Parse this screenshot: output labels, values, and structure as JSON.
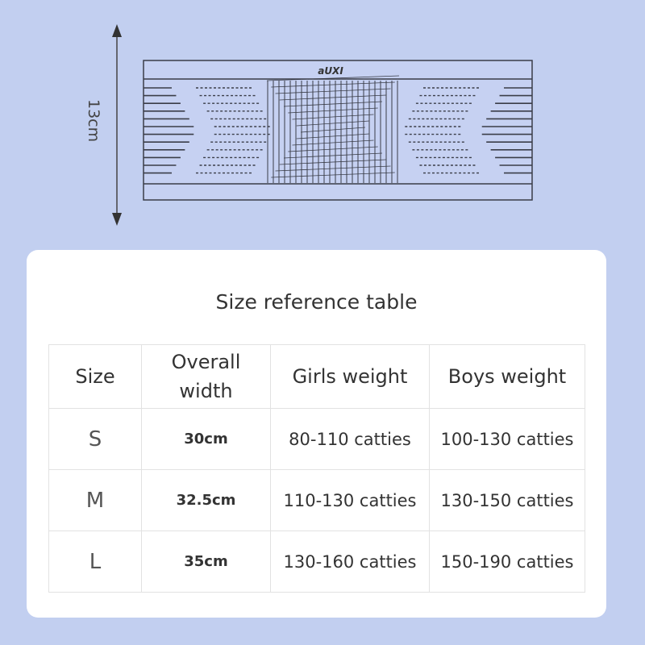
{
  "product": {
    "logo_text": "aUXI",
    "height_dimension": "13cm"
  },
  "table": {
    "title": "Size reference table",
    "headers": [
      "Size",
      "Overall width",
      "Girls weight",
      "Boys weight"
    ],
    "rows": [
      {
        "size": "S",
        "width": "30cm",
        "girls": "80-110 catties",
        "boys": "100-130 catties"
      },
      {
        "size": "M",
        "width": "32.5cm",
        "girls": "110-130 catties",
        "boys": "130-150 catties"
      },
      {
        "size": "L",
        "width": "35cm",
        "girls": "130-160 catties",
        "boys": "150-190 catties"
      }
    ]
  },
  "colors": {
    "background": "#c2cff0",
    "card": "#ffffff",
    "line": "#3a3d48"
  }
}
